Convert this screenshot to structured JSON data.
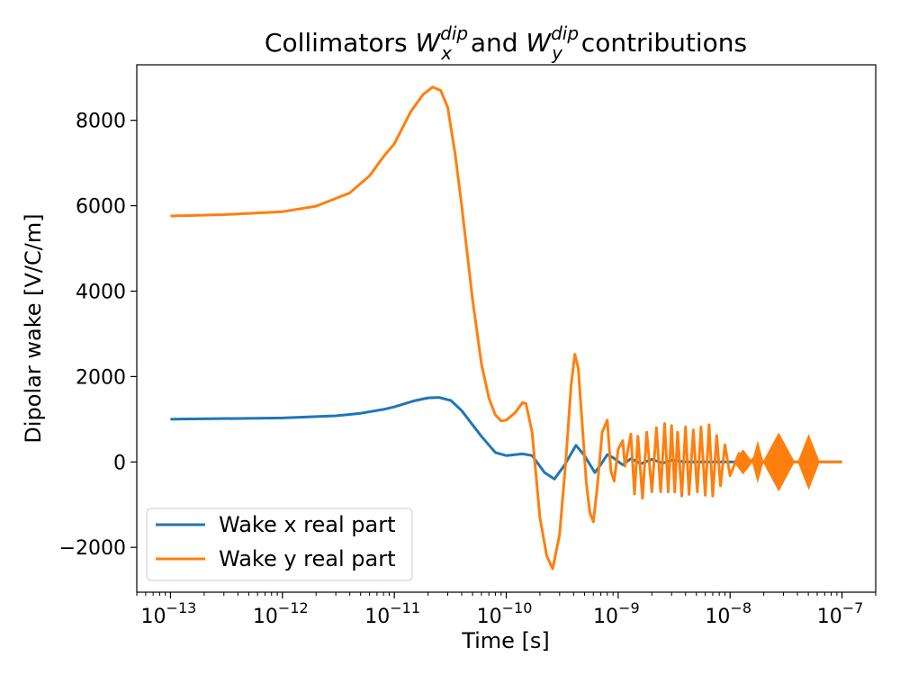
{
  "chart_data": {
    "type": "line",
    "title": {
      "prefix": "Collimators ",
      "w1_base": "W",
      "w1_sup": "dip",
      "w1_sub": "x",
      "middle": " and ",
      "w2_base": "W",
      "w2_sup": "dip",
      "w2_sub": "y",
      "suffix": " contributions"
    },
    "xlabel": "Time [s]",
    "ylabel": "Dipolar wake [V/C/m]",
    "xscale": "log",
    "xlim": [
      5e-14,
      2e-07
    ],
    "ylim": [
      -3050,
      9300
    ],
    "x_ticks": [
      {
        "value": 1e-13,
        "base": "10",
        "exp": "−13"
      },
      {
        "value": 1e-12,
        "base": "10",
        "exp": "−12"
      },
      {
        "value": 1e-11,
        "base": "10",
        "exp": "−11"
      },
      {
        "value": 1e-10,
        "base": "10",
        "exp": "−10"
      },
      {
        "value": 1e-09,
        "base": "10",
        "exp": "−9"
      },
      {
        "value": 1e-08,
        "base": "10",
        "exp": "−8"
      },
      {
        "value": 1e-07,
        "base": "10",
        "exp": "−7"
      }
    ],
    "y_ticks": [
      {
        "value": -2000,
        "label": "−2000"
      },
      {
        "value": 0,
        "label": "0"
      },
      {
        "value": 2000,
        "label": "2000"
      },
      {
        "value": 4000,
        "label": "4000"
      },
      {
        "value": 6000,
        "label": "6000"
      },
      {
        "value": 8000,
        "label": "8000"
      }
    ],
    "legend_position": "lower-left",
    "grid": false,
    "series": [
      {
        "name": "Wake x real part",
        "color": "#1f77b4",
        "points": [
          [
            1e-13,
            1000
          ],
          [
            1e-12,
            1030
          ],
          [
            3e-12,
            1080
          ],
          [
            5e-12,
            1140
          ],
          [
            8e-12,
            1230
          ],
          [
            1e-11,
            1290
          ],
          [
            1.5e-11,
            1430
          ],
          [
            2e-11,
            1500
          ],
          [
            2.5e-11,
            1510
          ],
          [
            3.2e-11,
            1440
          ],
          [
            4e-11,
            1200
          ],
          [
            6e-11,
            600
          ],
          [
            8e-11,
            220
          ],
          [
            1e-10,
            150
          ],
          [
            1.4e-10,
            190
          ],
          [
            1.7e-10,
            150
          ],
          [
            2.2e-10,
            -250
          ],
          [
            2.7e-10,
            -400
          ],
          [
            3.3e-10,
            -80
          ],
          [
            4.2e-10,
            390
          ],
          [
            5e-10,
            150
          ],
          [
            6.2e-10,
            -250
          ],
          [
            7e-10,
            -60
          ],
          [
            8e-10,
            170
          ],
          [
            9e-10,
            100
          ],
          [
            1.1e-09,
            -70
          ],
          [
            1.3e-09,
            80
          ],
          [
            1.6e-09,
            -40
          ],
          [
            2e-09,
            60
          ],
          [
            2.5e-09,
            -30
          ],
          [
            3e-09,
            40
          ],
          [
            4e-09,
            0
          ],
          [
            1e-07,
            0
          ]
        ]
      },
      {
        "name": "Wake y real part",
        "color": "#ff7f0e",
        "points": [
          [
            1e-13,
            5760
          ],
          [
            3e-13,
            5790
          ],
          [
            1e-12,
            5860
          ],
          [
            2e-12,
            5990
          ],
          [
            4e-12,
            6300
          ],
          [
            6e-12,
            6700
          ],
          [
            8e-12,
            7150
          ],
          [
            1e-11,
            7450
          ],
          [
            1.4e-11,
            8200
          ],
          [
            1.8e-11,
            8600
          ],
          [
            2.2e-11,
            8780
          ],
          [
            2.6e-11,
            8700
          ],
          [
            3e-11,
            8300
          ],
          [
            3.5e-11,
            7200
          ],
          [
            4e-11,
            6000
          ],
          [
            5e-11,
            3800
          ],
          [
            6e-11,
            2300
          ],
          [
            7e-11,
            1500
          ],
          [
            8e-11,
            1100
          ],
          [
            9e-11,
            960
          ],
          [
            1e-10,
            980
          ],
          [
            1.2e-10,
            1150
          ],
          [
            1.4e-10,
            1390
          ],
          [
            1.5e-10,
            1370
          ],
          [
            1.7e-10,
            700
          ],
          [
            2e-10,
            -1300
          ],
          [
            2.3e-10,
            -2200
          ],
          [
            2.6e-10,
            -2500
          ],
          [
            3e-10,
            -1700
          ],
          [
            3.4e-10,
            0
          ],
          [
            3.8e-10,
            1800
          ],
          [
            4.1e-10,
            2520
          ],
          [
            4.4e-10,
            2200
          ],
          [
            4.8e-10,
            800
          ],
          [
            5.2e-10,
            -500
          ],
          [
            5.6e-10,
            -1200
          ],
          [
            6e-10,
            -1400
          ],
          [
            6.5e-10,
            -600
          ],
          [
            7.2e-10,
            700
          ],
          [
            8e-10,
            980
          ],
          [
            8.6e-10,
            -200
          ],
          [
            9.2e-10,
            -450
          ],
          [
            1e-09,
            300
          ],
          [
            1.1e-09,
            500
          ],
          [
            1.15e-09,
            -100
          ],
          [
            1.3e-09,
            650
          ],
          [
            1.4e-09,
            -750
          ],
          [
            1.5e-09,
            600
          ],
          [
            1.65e-09,
            -850
          ],
          [
            1.8e-09,
            700
          ],
          [
            2e-09,
            -700
          ],
          [
            2.2e-09,
            800
          ],
          [
            2.4e-09,
            -700
          ],
          [
            2.6e-09,
            900
          ],
          [
            2.8e-09,
            -700
          ],
          [
            3e-09,
            850
          ],
          [
            3.2e-09,
            -700
          ],
          [
            3.4e-09,
            700
          ],
          [
            3.7e-09,
            -800
          ],
          [
            4e-09,
            820
          ],
          [
            4.3e-09,
            -760
          ],
          [
            4.7e-09,
            750
          ],
          [
            5.1e-09,
            -700
          ],
          [
            5.5e-09,
            820
          ],
          [
            6e-09,
            -780
          ],
          [
            6.5e-09,
            870
          ],
          [
            7e-09,
            -800
          ],
          [
            7.6e-09,
            620
          ],
          [
            8.2e-09,
            -560
          ],
          [
            9e-09,
            400
          ],
          [
            1e-08,
            -320
          ],
          [
            1.2e-08,
            200
          ],
          [
            1.4e-08,
            -150
          ],
          [
            1.6e-08,
            70
          ],
          [
            1.8e-08,
            -20
          ],
          [
            2e-08,
            0
          ],
          [
            2.2e-08,
            10
          ],
          [
            2.8e-08,
            0
          ],
          [
            3.2e-08,
            0
          ],
          [
            3.8e-08,
            0
          ],
          [
            4.5e-08,
            0
          ],
          [
            5.5e-08,
            0
          ],
          [
            6.5e-08,
            0
          ],
          [
            1e-07,
            0
          ]
        ],
        "envelopes": [
          {
            "from": 1.1e-08,
            "to": 1.55e-08,
            "amplitude": 260
          },
          {
            "from": 1.6e-08,
            "to": 1.95e-08,
            "amplitude": 420
          },
          {
            "from": 2e-08,
            "to": 3.7e-08,
            "amplitude": 650
          },
          {
            "from": 4.1e-08,
            "to": 6.2e-08,
            "amplitude": 600
          }
        ]
      }
    ]
  }
}
